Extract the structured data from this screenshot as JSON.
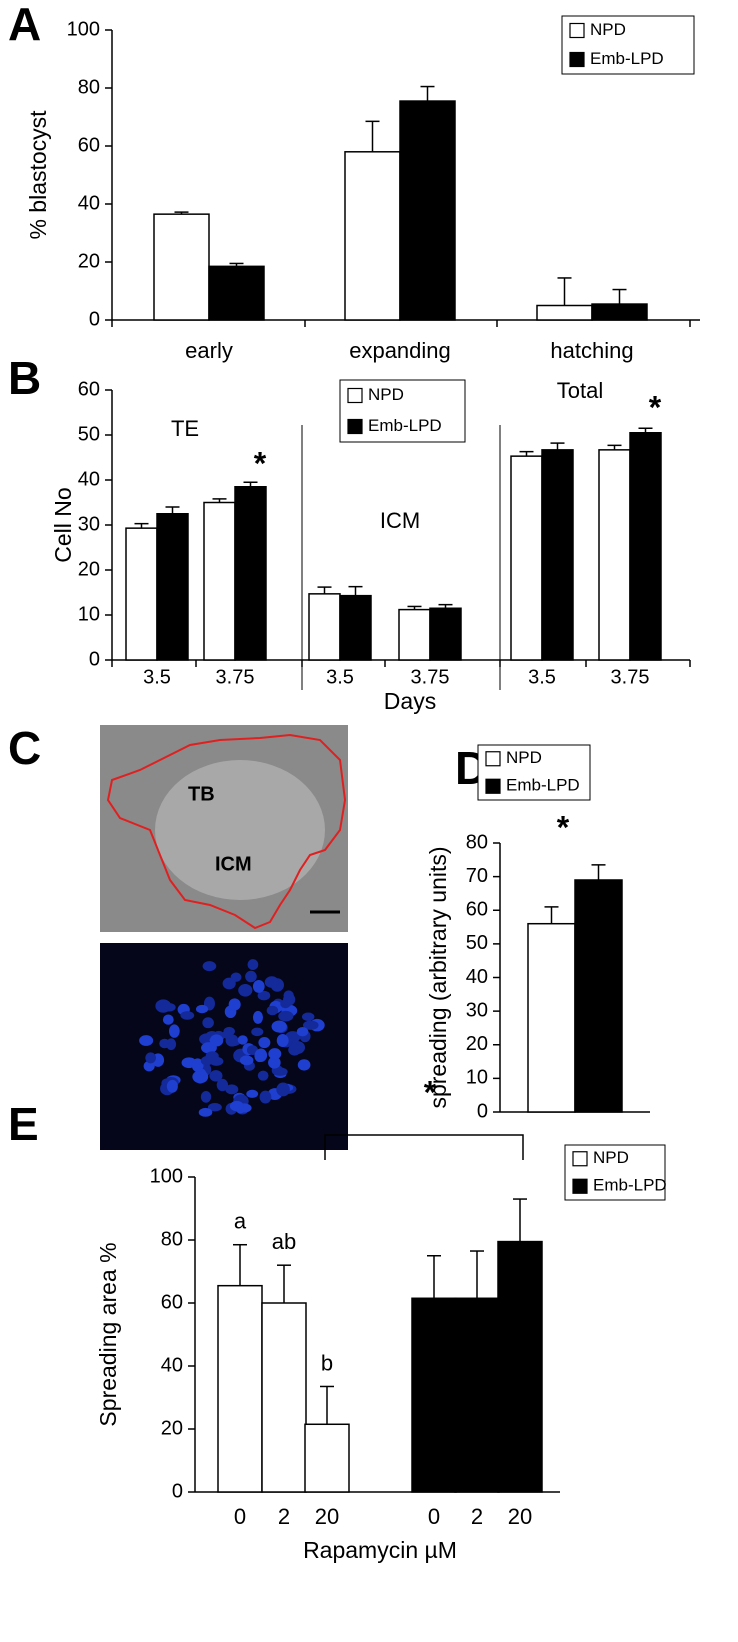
{
  "panel_labels": [
    "A",
    "B",
    "C",
    "D",
    "E"
  ],
  "micrograph": {
    "labels": [
      "TB",
      "ICM"
    ]
  },
  "chart_data": [
    {
      "type": "bar",
      "ylabel": "% blastocyst",
      "categories": [
        "early",
        "expanding",
        "hatching"
      ],
      "series": [
        {
          "name": "NPD",
          "color": "#ffffff",
          "values": [
            36.5,
            58,
            5
          ],
          "errors": [
            0.7,
            10.5,
            9.5
          ]
        },
        {
          "name": "Emb-LPD",
          "color": "#000000",
          "values": [
            18.5,
            75.5,
            5.5
          ],
          "errors": [
            1,
            5,
            5
          ]
        }
      ],
      "ylim": [
        0,
        100
      ],
      "yticks": [
        0,
        20,
        40,
        60,
        80,
        100
      ]
    },
    {
      "type": "bar",
      "ylabel": "Cell No",
      "xlabel": "Days",
      "groups": [
        "TE",
        "ICM",
        "Total"
      ],
      "categories": [
        "3.5",
        "3.75",
        "3.5",
        "3.75",
        "3.5",
        "3.75"
      ],
      "series": [
        {
          "name": "NPD",
          "color": "#ffffff",
          "values": [
            29.3,
            35,
            14.7,
            11.2,
            45.3,
            46.7
          ],
          "errors": [
            1,
            0.8,
            1.5,
            0.7,
            1,
            1
          ]
        },
        {
          "name": "Emb-LPD",
          "color": "#000000",
          "values": [
            32.5,
            38.5,
            14.3,
            11.5,
            46.7,
            50.5
          ],
          "errors": [
            1.5,
            1,
            2,
            0.8,
            1.5,
            1
          ]
        }
      ],
      "annotations": [
        "*",
        "*"
      ],
      "ylim": [
        0,
        60
      ],
      "yticks": [
        0,
        10,
        20,
        30,
        40,
        50,
        60
      ]
    },
    {
      "type": "bar",
      "ylabel": "spreading (arbitrary units)",
      "series": [
        {
          "name": "NPD",
          "color": "#ffffff",
          "values": [
            56
          ],
          "errors": [
            5
          ]
        },
        {
          "name": "Emb-LPD",
          "color": "#000000",
          "values": [
            69
          ],
          "errors": [
            4.5
          ]
        }
      ],
      "annotations": [
        "*"
      ],
      "ylim": [
        0,
        80
      ],
      "yticks": [
        0,
        10,
        20,
        30,
        40,
        50,
        60,
        70,
        80
      ]
    },
    {
      "type": "bar",
      "ylabel": "Spreading area %",
      "xlabel": "Rapamycin µM",
      "categories": [
        "0",
        "2",
        "20"
      ],
      "series": [
        {
          "name": "NPD",
          "color": "#ffffff",
          "values": [
            65.5,
            60,
            21.5
          ],
          "errors": [
            13,
            12,
            12
          ],
          "letters": [
            "a",
            "ab",
            "b"
          ]
        },
        {
          "name": "Emb-LPD",
          "color": "#000000",
          "values": [
            61.5,
            61.5,
            79.5
          ],
          "errors": [
            13.5,
            15,
            13.5
          ]
        }
      ],
      "annotations": [
        "*"
      ],
      "ylim": [
        0,
        100
      ],
      "yticks": [
        0,
        20,
        40,
        60,
        80,
        100
      ]
    }
  ]
}
